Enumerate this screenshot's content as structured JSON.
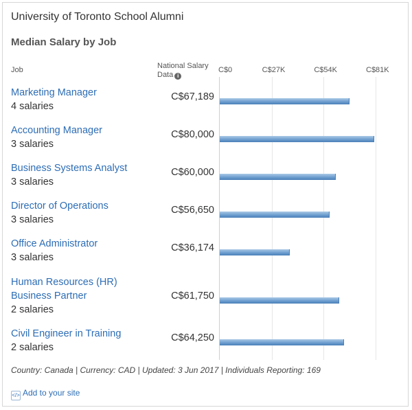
{
  "header": {
    "title": "University of Toronto School Alumni",
    "subtitle": "Median Salary by Job"
  },
  "columns": {
    "job": "Job",
    "national": "National Salary Data"
  },
  "chart_data": {
    "type": "bar",
    "orientation": "horizontal",
    "categories": [
      "Marketing Manager",
      "Accounting Manager",
      "Business Systems Analyst",
      "Director of Operations",
      "Office Administrator",
      "Human Resources (HR) Business Partner",
      "Civil Engineer in Training"
    ],
    "counts": [
      "4 salaries",
      "3 salaries",
      "3 salaries",
      "3 salaries",
      "3 salaries",
      "2 salaries",
      "2 salaries"
    ],
    "value_labels": [
      "C$67,189",
      "C$80,000",
      "C$60,000",
      "C$56,650",
      "C$36,174",
      "C$61,750",
      "C$64,250"
    ],
    "values": [
      67189,
      80000,
      60000,
      56650,
      36174,
      61750,
      64250
    ],
    "xlim": [
      0,
      81000
    ],
    "ticks": [
      0,
      27000,
      54000,
      81000
    ],
    "tick_labels": [
      "C$0",
      "C$27K",
      "C$54K",
      "C$81K"
    ],
    "grid": true
  },
  "footer": {
    "text": "Country: Canada | Currency: CAD | Updated: 3 Jun 2017 | Individuals Reporting: 169",
    "add_link": "Add to your site"
  },
  "colors": {
    "link": "#2d6db5",
    "bar": "#6f9fd0"
  }
}
